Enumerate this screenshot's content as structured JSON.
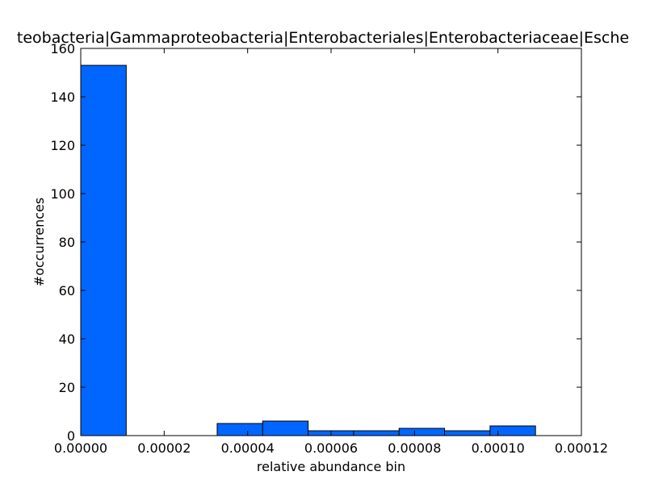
{
  "chart_data": {
    "type": "bar",
    "title": "teobacteria|Gammaproteobacteria|Enterobacteriales|Enterobacteriaceae|Esche",
    "xlabel": "relative abundance bin",
    "ylabel": "#occurrences",
    "xlim": [
      0,
      0.00012
    ],
    "ylim": [
      0,
      160
    ],
    "x_ticks": [
      "0.00000",
      "0.00002",
      "0.00004",
      "0.00006",
      "0.00008",
      "0.00010",
      "0.00012"
    ],
    "y_ticks": [
      "0",
      "20",
      "40",
      "60",
      "80",
      "100",
      "120",
      "140",
      "160"
    ],
    "bar_color": "#0066ff",
    "grid": false,
    "bins": [
      {
        "start": 0.0,
        "end": 1.09e-05,
        "count": 153
      },
      {
        "start": 1.09e-05,
        "end": 2.18e-05,
        "count": 0
      },
      {
        "start": 2.18e-05,
        "end": 3.27e-05,
        "count": 0
      },
      {
        "start": 3.27e-05,
        "end": 4.36e-05,
        "count": 5
      },
      {
        "start": 4.36e-05,
        "end": 5.45e-05,
        "count": 6
      },
      {
        "start": 5.45e-05,
        "end": 6.54e-05,
        "count": 2
      },
      {
        "start": 6.54e-05,
        "end": 7.63e-05,
        "count": 2
      },
      {
        "start": 7.63e-05,
        "end": 8.72e-05,
        "count": 3
      },
      {
        "start": 8.72e-05,
        "end": 9.81e-05,
        "count": 2
      },
      {
        "start": 9.81e-05,
        "end": 0.000109,
        "count": 4
      }
    ]
  }
}
